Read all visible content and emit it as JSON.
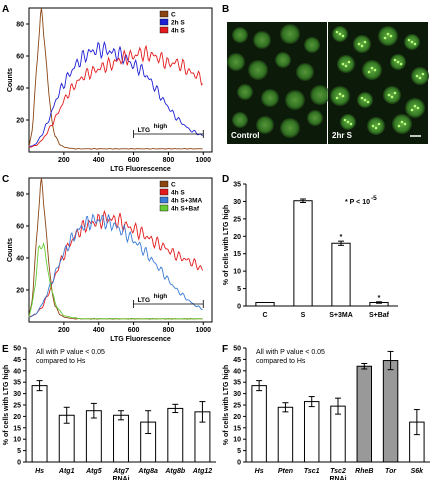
{
  "panels": {
    "A": {
      "label": "A"
    },
    "B": {
      "label": "B",
      "captions": [
        "Control",
        "2hr S"
      ]
    },
    "C": {
      "label": "C"
    },
    "D": {
      "label": "D"
    },
    "E": {
      "label": "E"
    },
    "F": {
      "label": "F"
    }
  },
  "chart_data": [
    {
      "panel": "A",
      "type": "line",
      "xlabel": "LTG Fluorescence",
      "ylabel": "Counts",
      "xlim": [
        0,
        1050
      ],
      "ylim": [
        0,
        90
      ],
      "xticks": [
        200,
        400,
        600,
        800,
        1000
      ],
      "yticks": [
        20,
        40,
        60,
        80
      ],
      "annotation": {
        "text": "LTG",
        "sup": "high",
        "range": [
          600,
          1000
        ]
      },
      "series": [
        {
          "name": "C",
          "color": "#8B4513",
          "x": [
            0,
            20,
            40,
            55,
            70,
            80,
            90,
            100,
            115,
            130,
            150,
            175,
            200,
            260,
            1000
          ],
          "y": [
            3,
            15,
            45,
            75,
            85,
            80,
            70,
            55,
            35,
            20,
            10,
            5,
            3,
            2,
            2
          ]
        },
        {
          "name": "2h S",
          "color": "#1f1fd6",
          "x": [
            0,
            40,
            80,
            120,
            160,
            200,
            240,
            280,
            320,
            360,
            400,
            440,
            480,
            520,
            560,
            600,
            640,
            680,
            720,
            760,
            800,
            840,
            880,
            920,
            960,
            1000
          ],
          "y": [
            3,
            5,
            12,
            22,
            34,
            43,
            50,
            56,
            60,
            63,
            64,
            64,
            62,
            61,
            58,
            54,
            52,
            47,
            41,
            34,
            28,
            22,
            18,
            14,
            12,
            10
          ]
        },
        {
          "name": "4h S",
          "color": "#e41a1c",
          "x": [
            0,
            40,
            80,
            120,
            160,
            200,
            240,
            280,
            320,
            360,
            400,
            440,
            480,
            520,
            560,
            600,
            640,
            680,
            720,
            760,
            800,
            840,
            880,
            920,
            960,
            1000
          ],
          "y": [
            3,
            4,
            8,
            15,
            23,
            32,
            39,
            44,
            48,
            50,
            52,
            54,
            55,
            58,
            59,
            60,
            62,
            61,
            60,
            58,
            55,
            56,
            54,
            50,
            48,
            45
          ]
        }
      ]
    },
    {
      "panel": "C",
      "type": "line",
      "xlabel": "LTG Fluorescence",
      "ylabel": "Counts",
      "xlim": [
        0,
        1050
      ],
      "ylim": [
        0,
        90
      ],
      "xticks": [
        200,
        400,
        600,
        800,
        1000
      ],
      "yticks": [
        20,
        40,
        60,
        80
      ],
      "annotation": {
        "text": "LTG",
        "sup": "high",
        "range": [
          600,
          1000
        ]
      },
      "series": [
        {
          "name": "C",
          "color": "#8B4513",
          "x": [
            0,
            20,
            40,
            55,
            70,
            80,
            90,
            100,
            115,
            130,
            150,
            175,
            200,
            260,
            1000
          ],
          "y": [
            3,
            15,
            45,
            75,
            85,
            80,
            70,
            55,
            35,
            20,
            10,
            5,
            3,
            2,
            2
          ]
        },
        {
          "name": "4h  S",
          "color": "#e41a1c",
          "x": [
            0,
            40,
            80,
            120,
            160,
            200,
            240,
            280,
            320,
            360,
            400,
            440,
            480,
            520,
            560,
            600,
            640,
            680,
            720,
            760,
            800,
            840,
            880,
            920,
            960,
            1000
          ],
          "y": [
            3,
            5,
            10,
            20,
            32,
            42,
            50,
            56,
            60,
            62,
            63,
            65,
            64,
            63,
            60,
            58,
            56,
            53,
            50,
            48,
            45,
            42,
            40,
            38,
            36,
            32
          ]
        },
        {
          "name": "4h S+3MA",
          "color": "#3a7bd5",
          "x": [
            0,
            40,
            80,
            120,
            160,
            200,
            240,
            280,
            320,
            360,
            400,
            440,
            480,
            520,
            560,
            600,
            640,
            680,
            720,
            760,
            800,
            840,
            880,
            920,
            960,
            1000
          ],
          "y": [
            3,
            5,
            12,
            22,
            33,
            43,
            51,
            57,
            61,
            63,
            64,
            63,
            61,
            58,
            55,
            51,
            47,
            42,
            37,
            32,
            26,
            21,
            17,
            13,
            10,
            8
          ]
        },
        {
          "name": "4h S+Baf",
          "color": "#66cc33",
          "x": [
            0,
            20,
            40,
            55,
            70,
            85,
            100,
            115,
            130,
            150,
            175,
            200,
            240,
            300,
            1000
          ],
          "y": [
            3,
            12,
            28,
            44,
            50,
            47,
            38,
            28,
            20,
            12,
            7,
            4,
            3,
            2,
            2
          ]
        }
      ]
    },
    {
      "panel": "D",
      "type": "bar",
      "ylabel": "% of cells with LTG high",
      "categories": [
        "C",
        "S",
        "S+3MA",
        "S+Baf"
      ],
      "values": [
        1,
        30.2,
        18,
        1
      ],
      "errors": [
        0,
        0.5,
        0.6,
        0.2
      ],
      "stars": [
        "",
        "",
        "*",
        "*"
      ],
      "ylim": [
        0,
        35
      ],
      "yticks": [
        0,
        5,
        10,
        15,
        20,
        25,
        30,
        35
      ],
      "note": "* P < 10",
      "note_sup": "-5"
    },
    {
      "panel": "E",
      "type": "bar",
      "ylabel": "% of cells with LTG high",
      "xlabel": "RNAi",
      "categories": [
        "Hs",
        "Atg1",
        "Atg5",
        "Atg7",
        "Atg8a",
        "Atg8b",
        "Atg12"
      ],
      "values": [
        33.5,
        20.5,
        22.5,
        20.5,
        17.5,
        23.5,
        22
      ],
      "errors": [
        2.2,
        3.5,
        3.2,
        2.0,
        5.0,
        1.8,
        4.5
      ],
      "ylim": [
        0,
        50
      ],
      "yticks": [
        0,
        5,
        10,
        15,
        20,
        25,
        30,
        35,
        40,
        45,
        50
      ],
      "note_lines": [
        "All with P value < 0.05",
        "compared to Hs"
      ]
    },
    {
      "panel": "F",
      "type": "bar",
      "ylabel": "% of cells with LTG high",
      "xlabel": "RNAi",
      "categories": [
        "Hs",
        "Pten",
        "Tsc1",
        "Tsc2",
        "RheB",
        "Tor",
        "S6k"
      ],
      "values": [
        33.5,
        24,
        26.5,
        24.5,
        42,
        44.5,
        17.5
      ],
      "errors": [
        2.2,
        2.0,
        2.2,
        3.5,
        1.2,
        4.0,
        5.5
      ],
      "fills": [
        "#ffffff",
        "#ffffff",
        "#ffffff",
        "#ffffff",
        "#999999",
        "#999999",
        "#ffffff"
      ],
      "ylim": [
        0,
        50
      ],
      "yticks": [
        0,
        5,
        10,
        15,
        20,
        25,
        30,
        35,
        40,
        45,
        50
      ],
      "note_lines": [
        "All with P value < 0.05",
        "compared to Hs"
      ]
    }
  ]
}
